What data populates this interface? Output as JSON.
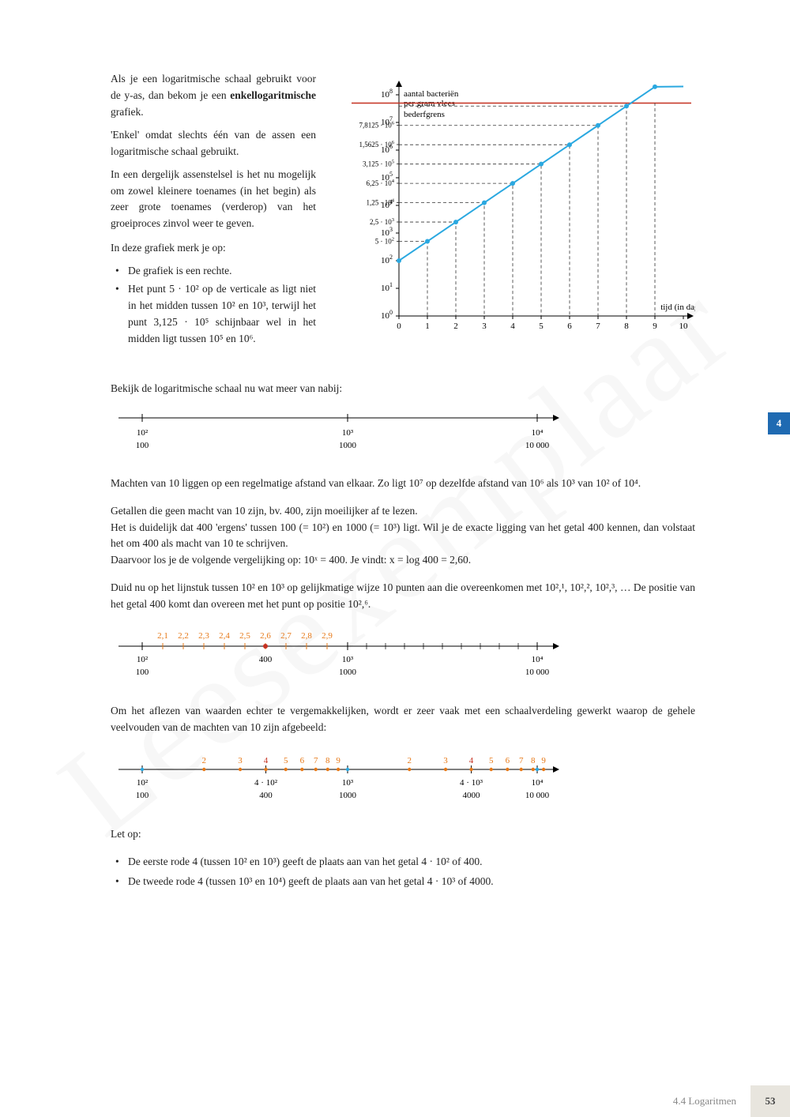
{
  "watermark": "Leesexemplaar",
  "intro": {
    "p1_a": "Als je een logaritmische schaal gebruikt voor de y-as, dan bekom je een ",
    "p1_b": "enkellogaritmische",
    "p1_c": " grafiek.",
    "p2": "'Enkel' omdat slechts één van de assen een logaritmische schaal gebruikt.",
    "p3": "In een dergelijk assenstelsel is het nu mogelijk om zowel kleinere toenames (in het begin) als zeer grote toenames (verderop) van het groeiproces zinvol weer te geven.",
    "obs_title": "In deze grafiek merk je op:",
    "b1": "De grafiek is een rechte.",
    "b2": "Het punt 5 · 10² op de verticale as ligt niet in het midden tussen 10² en 10³, terwijl het punt 3,125 · 10⁵ schijnbaar wel in het midden ligt tussen 10⁵ en 10⁶."
  },
  "main_chart": {
    "y_title": "aantal bacteriën per gram vlees",
    "bederf": "bederfgrens",
    "x_title": "tijd (in dagen)",
    "x_ticks": [
      "0",
      "1",
      "2",
      "3",
      "4",
      "5",
      "6",
      "7",
      "8",
      "9",
      "10"
    ],
    "y_major_labels": [
      "10⁰",
      "10¹",
      "10²",
      "10³",
      "10⁴",
      "10⁵",
      "10⁶",
      "10⁷",
      "10⁸"
    ],
    "y_extra": [
      "5 · 10²",
      "2,5 · 10³",
      "1,25 · 10⁴",
      "6,25 · 10⁴",
      "3,125 · 10⁵",
      "1,5625 · 10⁶",
      "7,8125 · 10⁶"
    ],
    "colors": {
      "line": "#2aa8e0",
      "red": "#c53020",
      "bederf_line": "#c53020"
    }
  },
  "section1": {
    "intro": "Bekijk de logaritmische schaal nu wat meer van nabij:"
  },
  "scale1": {
    "ticks": [
      {
        "pow": "10²",
        "val": "100"
      },
      {
        "pow": "10³",
        "val": "1000"
      },
      {
        "pow": "10⁴",
        "val": "10 000"
      }
    ]
  },
  "para2": "Machten van 10 liggen op een regelmatige afstand van elkaar. Zo ligt 10⁷ op dezelfde afstand van 10⁶ als 10³ van 10² of 10⁴.",
  "para3": "Getallen die geen macht van 10 zijn, bv. 400, zijn moeilijker af te lezen.\nHet is duidelijk dat 400 'ergens' tussen 100 (= 10²) en 1000 (= 10³) ligt. Wil je de exacte ligging van het getal 400 kennen, dan volstaat het om 400 als macht van 10 te schrijven.\nDaarvoor los je de volgende vergelijking op: 10ˣ = 400. Je vindt: x = log 400 = 2,60.",
  "para4": "Duid nu op het lijnstuk tussen 10² en 10³ op gelijkmatige wijze 10 punten aan die overeenkomen met 10²,¹, 10²,², 10²,³, … De positie van het getal 400 komt dan overeen met het punt op positie 10²,⁶.",
  "scale2": {
    "subticks": [
      "2,1",
      "2,2",
      "2,3",
      "2,4",
      "2,5",
      "2,6",
      "2,7",
      "2,8",
      "2,9"
    ],
    "mark_label": "400",
    "ticks": [
      {
        "pow": "10²",
        "val": "100"
      },
      {
        "pow": "10³",
        "val": "1000"
      },
      {
        "pow": "10⁴",
        "val": "10 000"
      }
    ]
  },
  "para5": "Om het aflezen van waarden echter te vergemakkelijken, wordt er zeer vaak met een schaalverdeling gewerkt waarop de gehele veelvouden van de machten van 10 zijn afgebeeld:",
  "scale3": {
    "multipliers": [
      "2",
      "3",
      "4",
      "5",
      "6",
      "7",
      "8",
      "9"
    ],
    "ticks": [
      {
        "pow": "10²",
        "val": "100"
      },
      {
        "pow": "4 · 10²",
        "val": "400"
      },
      {
        "pow": "10³",
        "val": "1000"
      },
      {
        "pow": "4 · 10³",
        "val": "4000"
      },
      {
        "pow": "10⁴",
        "val": "10 000"
      }
    ]
  },
  "letop": {
    "title": "Let op:",
    "b1": "De eerste rode 4 (tussen 10² en 10³) geeft de plaats aan van het getal 4 · 10² of 400.",
    "b2": "De tweede rode 4 (tussen 10³ en 10⁴) geeft de plaats aan van het getal 4 · 10³ of 4000."
  },
  "side_tab": "4",
  "footer": {
    "section": "4.4   Logaritmen",
    "page": "53"
  }
}
